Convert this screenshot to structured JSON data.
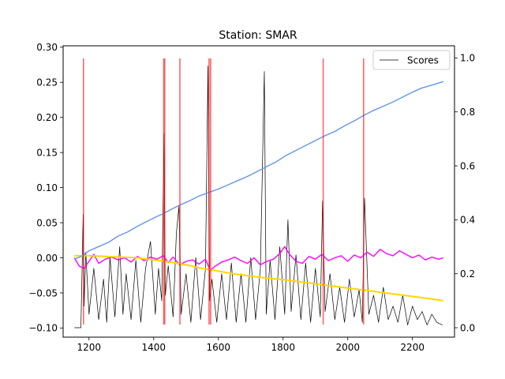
{
  "chart_data": {
    "type": "line",
    "title": "Station: SMAR",
    "xlabel": "",
    "ylabel": "",
    "xlim": [
      1120,
      2330
    ],
    "ylim": [
      -0.113,
      0.302
    ],
    "ylim_right": [
      -0.035,
      1.045
    ],
    "x_ticks": [
      1200,
      1400,
      1600,
      1800,
      2000,
      2200
    ],
    "y_ticks": [
      -0.1,
      -0.05,
      0.0,
      0.05,
      0.1,
      0.15,
      0.2,
      0.25,
      0.3
    ],
    "y_tick_labels": [
      "−0.10",
      "−0.05",
      "0.00",
      "0.05",
      "0.10",
      "0.15",
      "0.20",
      "0.25",
      "0.30"
    ],
    "y_right_ticks": [
      0.0,
      0.2,
      0.4,
      0.6,
      0.8,
      1.0
    ],
    "y_right_tick_labels": [
      "0.0",
      "0.2",
      "0.4",
      "0.6",
      "0.8",
      "1.0"
    ],
    "grid": false,
    "legend": {
      "position": "top-right",
      "entries": [
        {
          "name": "Scores",
          "color": "#000000"
        }
      ]
    },
    "series": [
      {
        "name": "",
        "axis": "left",
        "color": "#6495ED",
        "x": [
          1155,
          1180,
          1200,
          1230,
          1260,
          1290,
          1320,
          1350,
          1380,
          1410,
          1430,
          1450,
          1480,
          1510,
          1540,
          1570,
          1600,
          1630,
          1660,
          1690,
          1720,
          1750,
          1780,
          1810,
          1840,
          1870,
          1900,
          1930,
          1960,
          1990,
          2020,
          2050,
          2080,
          2110,
          2140,
          2170,
          2200,
          2230,
          2260,
          2295
        ],
        "y": [
          -0.002,
          0.003,
          0.01,
          0.016,
          0.022,
          0.031,
          0.037,
          0.045,
          0.052,
          0.059,
          0.063,
          0.068,
          0.075,
          0.081,
          0.088,
          0.093,
          0.098,
          0.104,
          0.11,
          0.116,
          0.123,
          0.13,
          0.137,
          0.146,
          0.153,
          0.16,
          0.167,
          0.174,
          0.18,
          0.188,
          0.195,
          0.203,
          0.21,
          0.216,
          0.222,
          0.229,
          0.236,
          0.242,
          0.246,
          0.251
        ]
      },
      {
        "name": "",
        "axis": "left",
        "color": "#FFD700",
        "x": [
          1155,
          1200,
          1250,
          1300,
          1350,
          1400,
          1450,
          1500,
          1550,
          1600,
          1650,
          1700,
          1750,
          1800,
          1850,
          1900,
          1950,
          2000,
          2050,
          2100,
          2150,
          2200,
          2250,
          2295
        ],
        "y": [
          0.003,
          0.003,
          0.002,
          0.001,
          0.0,
          -0.003,
          -0.006,
          -0.01,
          -0.015,
          -0.019,
          -0.023,
          -0.026,
          -0.029,
          -0.031,
          -0.034,
          -0.037,
          -0.04,
          -0.043,
          -0.046,
          -0.049,
          -0.052,
          -0.055,
          -0.058,
          -0.061
        ]
      },
      {
        "name": "",
        "axis": "left",
        "color": "#FF00FF",
        "x": [
          1155,
          1170,
          1185,
          1200,
          1215,
          1230,
          1250,
          1270,
          1290,
          1310,
          1330,
          1350,
          1370,
          1390,
          1410,
          1430,
          1445,
          1460,
          1480,
          1500,
          1520,
          1540,
          1560,
          1575,
          1590,
          1610,
          1630,
          1650,
          1670,
          1690,
          1710,
          1730,
          1750,
          1770,
          1790,
          1805,
          1820,
          1840,
          1860,
          1880,
          1900,
          1920,
          1940,
          1960,
          1980,
          2000,
          2020,
          2040,
          2060,
          2080,
          2100,
          2120,
          2140,
          2160,
          2180,
          2200,
          2220,
          2240,
          2260,
          2280,
          2295
        ],
        "y": [
          0.0,
          -0.012,
          -0.015,
          -0.005,
          0.005,
          -0.008,
          -0.002,
          0.001,
          -0.003,
          0.0,
          -0.006,
          0.002,
          -0.004,
          0.001,
          -0.002,
          0.003,
          -0.007,
          0.001,
          -0.01,
          -0.005,
          -0.003,
          -0.009,
          -0.002,
          -0.018,
          -0.012,
          -0.006,
          -0.003,
          0.001,
          -0.004,
          -0.008,
          0.0,
          -0.01,
          -0.005,
          -0.002,
          0.006,
          0.016,
          0.005,
          -0.005,
          -0.008,
          0.002,
          -0.002,
          0.005,
          -0.004,
          0.0,
          0.003,
          -0.005,
          0.004,
          0.0,
          0.008,
          0.002,
          0.012,
          0.006,
          0.003,
          0.01,
          0.005,
          0.0,
          0.004,
          -0.003,
          0.001,
          -0.002,
          0.0
        ]
      },
      {
        "name": "Scores",
        "axis": "right",
        "color": "#000000",
        "x": [
          1155,
          1175,
          1178,
          1182,
          1185,
          1190,
          1200,
          1215,
          1230,
          1245,
          1255,
          1265,
          1280,
          1295,
          1305,
          1315,
          1330,
          1345,
          1360,
          1375,
          1390,
          1405,
          1415,
          1425,
          1432,
          1436,
          1445,
          1460,
          1470,
          1478,
          1485,
          1500,
          1515,
          1530,
          1545,
          1560,
          1568,
          1573,
          1580,
          1595,
          1610,
          1625,
          1640,
          1655,
          1670,
          1685,
          1700,
          1715,
          1730,
          1742,
          1748,
          1760,
          1775,
          1790,
          1805,
          1815,
          1825,
          1840,
          1855,
          1870,
          1885,
          1900,
          1915,
          1922,
          1930,
          1945,
          1960,
          1975,
          1990,
          2005,
          2020,
          2035,
          2045,
          2052,
          2065,
          2080,
          2095,
          2110,
          2125,
          2140,
          2155,
          2170,
          2185,
          2200,
          2215,
          2230,
          2245,
          2260,
          2275,
          2293
        ],
        "y": [
          0.0,
          0.0,
          0.18,
          0.42,
          0.08,
          0.28,
          0.05,
          0.22,
          0.03,
          0.18,
          0.02,
          0.26,
          0.04,
          0.3,
          0.05,
          0.2,
          0.03,
          0.25,
          0.02,
          0.22,
          0.32,
          0.05,
          0.22,
          0.1,
          0.72,
          0.12,
          0.23,
          0.04,
          0.35,
          0.45,
          0.05,
          0.2,
          0.02,
          0.26,
          0.03,
          0.22,
          0.97,
          0.1,
          0.18,
          0.02,
          0.2,
          0.03,
          0.24,
          0.02,
          0.2,
          0.02,
          0.26,
          0.03,
          0.22,
          0.95,
          0.05,
          0.25,
          0.03,
          0.3,
          0.05,
          0.4,
          0.06,
          0.27,
          0.03,
          0.24,
          0.02,
          0.22,
          0.04,
          0.47,
          0.06,
          0.2,
          0.03,
          0.15,
          0.02,
          0.18,
          0.04,
          0.14,
          0.02,
          0.48,
          0.05,
          0.12,
          0.02,
          0.15,
          0.03,
          0.08,
          0.02,
          0.12,
          0.01,
          0.08,
          0.03,
          0.06,
          0.01,
          0.05,
          0.02,
          0.01
        ]
      }
    ],
    "vlines": {
      "color": "#FF0000",
      "x": [
        1183,
        1431,
        1434,
        1481,
        1571,
        1576,
        1924,
        2049
      ],
      "y_range": [
        -0.095,
        0.284
      ]
    }
  }
}
